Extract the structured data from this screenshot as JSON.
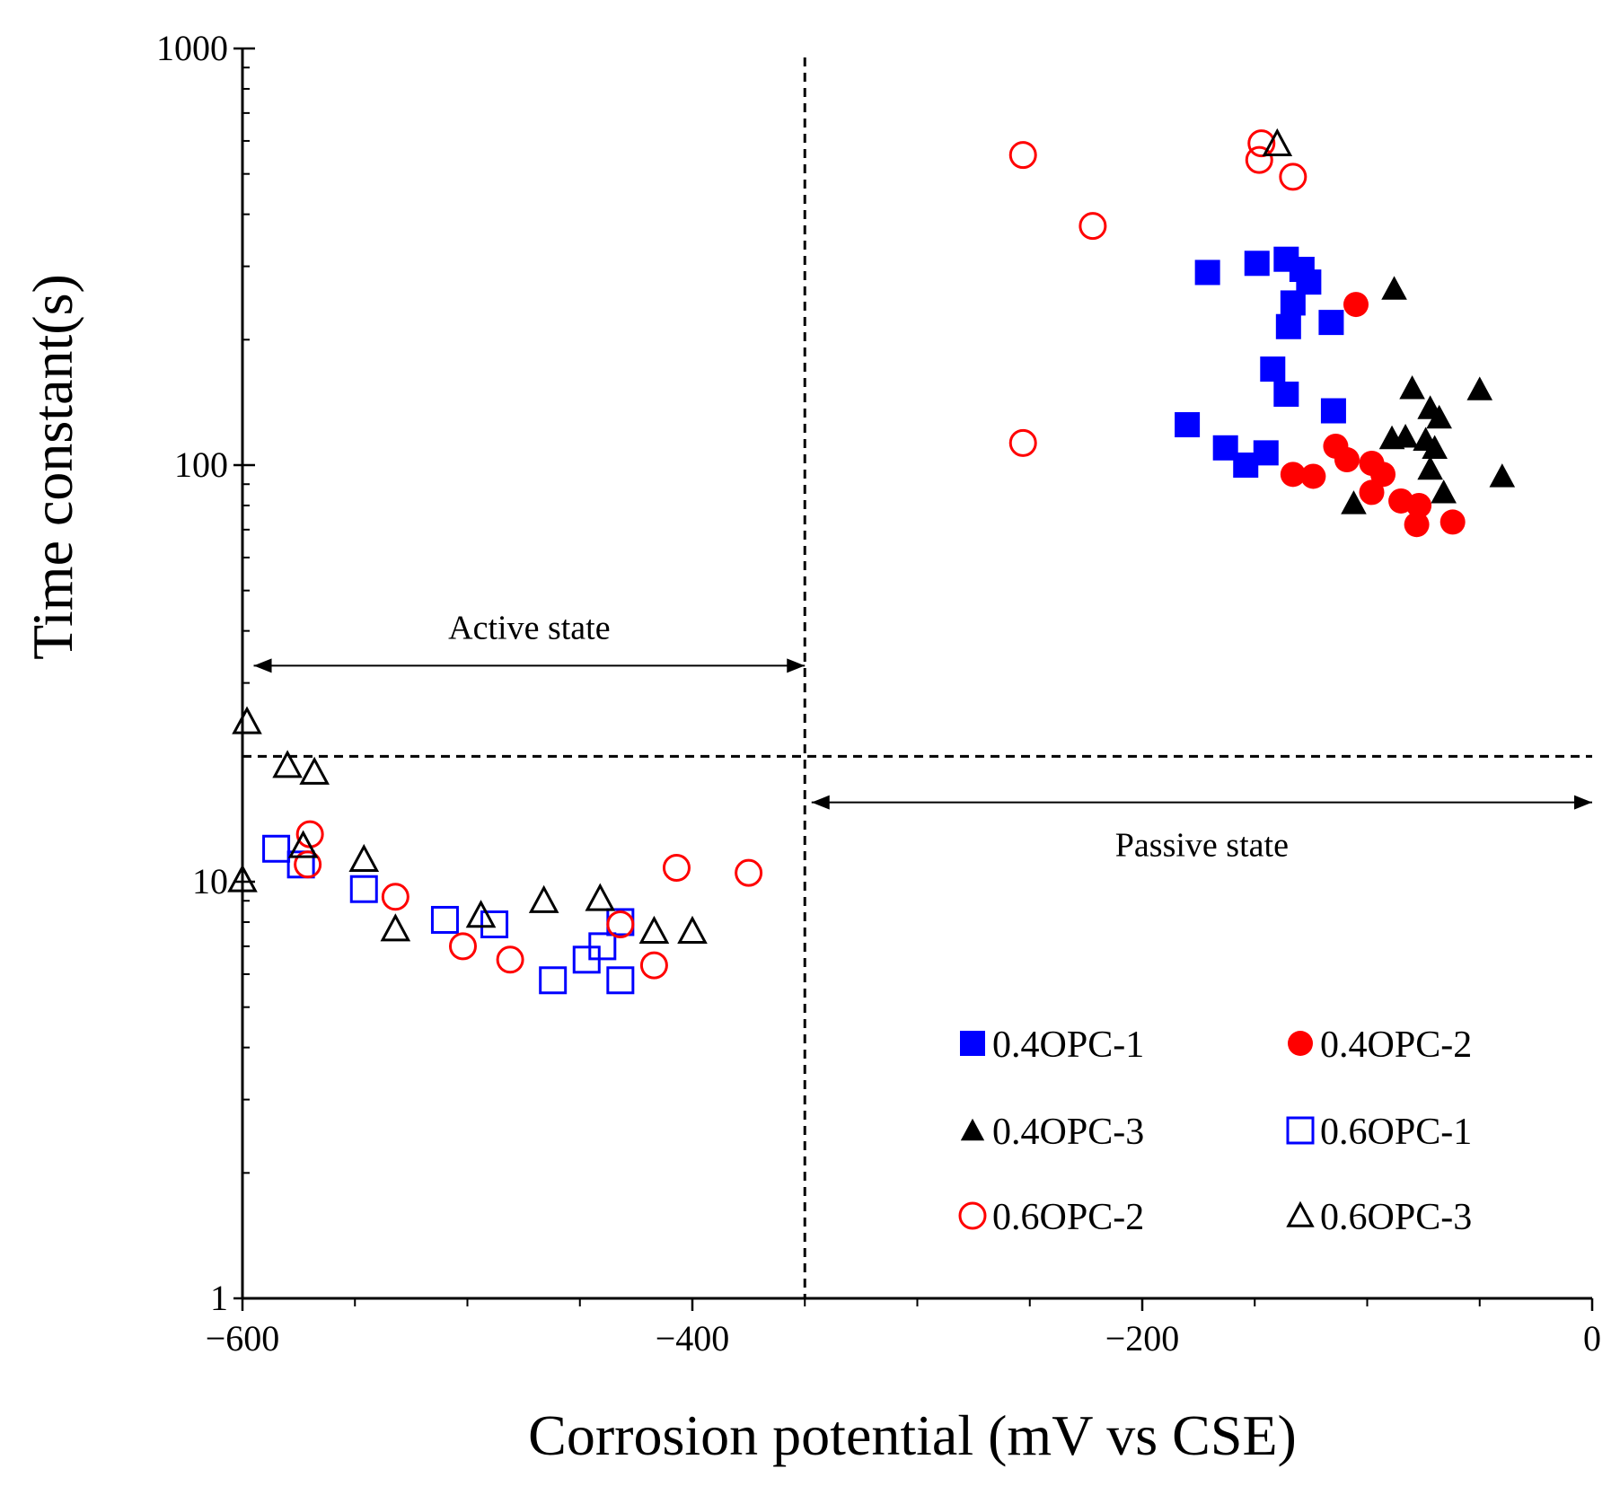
{
  "chart_data": {
    "type": "scatter",
    "title": "",
    "xlabel": "Corrosion potential (mV vs CSE)",
    "ylabel": "Time constant(s)",
    "xlim": [
      -600,
      0
    ],
    "ylim": [
      1,
      1000
    ],
    "yscale": "log",
    "xticks": [
      -600,
      -400,
      -200,
      0
    ],
    "xtick_labels": [
      "−600",
      "−400",
      "−200",
      "0"
    ],
    "yticks": [
      1,
      10,
      100,
      1000
    ],
    "ytick_labels": [
      "1",
      "10",
      "100",
      "1000"
    ],
    "threshold_lines": {
      "x": -350,
      "y": 20
    },
    "annotations": [
      {
        "text": "Active state",
        "arrow_from_x": -595,
        "arrow_to_x": -350,
        "arrow_y": 33
      },
      {
        "text": "Passive state",
        "arrow_from_x": -347,
        "arrow_to_x": 0,
        "arrow_y": 15.5
      }
    ],
    "legend_position": "lower-right",
    "series": [
      {
        "name": "0.4OPC-1",
        "marker": "square",
        "filled": true,
        "color": "#0000ff",
        "points": [
          [
            -171,
            290
          ],
          [
            -149,
            305
          ],
          [
            -136,
            312
          ],
          [
            -129,
            295
          ],
          [
            -126,
            275
          ],
          [
            -133,
            245
          ],
          [
            -135,
            215
          ],
          [
            -116,
            220
          ],
          [
            -142,
            170
          ],
          [
            -136,
            148
          ],
          [
            -115,
            135
          ],
          [
            -180,
            125
          ],
          [
            -163,
            110
          ],
          [
            -154,
            100
          ],
          [
            -145,
            107
          ]
        ]
      },
      {
        "name": "0.4OPC-2",
        "marker": "circle",
        "filled": true,
        "color": "#ff0000",
        "points": [
          [
            -105,
            243
          ],
          [
            -114,
            111
          ],
          [
            -109,
            103
          ],
          [
            -98,
            101
          ],
          [
            -93,
            95
          ],
          [
            -133,
            95
          ],
          [
            -124,
            94
          ],
          [
            -98,
            86
          ],
          [
            -85,
            82
          ],
          [
            -77,
            80
          ],
          [
            -78,
            72
          ],
          [
            -62,
            73
          ]
        ]
      },
      {
        "name": "0.4OPC-3",
        "marker": "triangle",
        "filled": true,
        "color": "#000000",
        "points": [
          [
            -88,
            265
          ],
          [
            -80,
            153
          ],
          [
            -72,
            137
          ],
          [
            -68,
            130
          ],
          [
            -50,
            152
          ],
          [
            -89,
            116
          ],
          [
            -83,
            117
          ],
          [
            -74,
            115
          ],
          [
            -70,
            110
          ],
          [
            -72,
            98
          ],
          [
            -40,
            94
          ],
          [
            -66,
            86
          ],
          [
            -106,
            81
          ]
        ]
      },
      {
        "name": "0.6OPC-1",
        "marker": "square",
        "filled": false,
        "color": "#0000ff",
        "points": [
          [
            -585,
            12
          ],
          [
            -574,
            11
          ],
          [
            -546,
            9.6
          ],
          [
            -510,
            8.1
          ],
          [
            -488,
            7.9
          ],
          [
            -462,
            5.8
          ],
          [
            -447,
            6.5
          ],
          [
            -440,
            7
          ],
          [
            -432,
            8
          ],
          [
            -432,
            5.8
          ]
        ]
      },
      {
        "name": "0.6OPC-2",
        "marker": "circle",
        "filled": false,
        "color": "#ff0000",
        "points": [
          [
            -253,
            555
          ],
          [
            -147,
            592
          ],
          [
            -148,
            540
          ],
          [
            -133,
            492
          ],
          [
            -222,
            375
          ],
          [
            -253,
            113
          ],
          [
            -570,
            13
          ],
          [
            -571,
            11
          ],
          [
            -532,
            9.2
          ],
          [
            -502,
            7
          ],
          [
            -481,
            6.5
          ],
          [
            -407,
            10.8
          ],
          [
            -375,
            10.5
          ],
          [
            -432,
            7.9
          ],
          [
            -417,
            6.3
          ]
        ]
      },
      {
        "name": "0.6OPC-3",
        "marker": "triangle",
        "filled": false,
        "color": "#000000",
        "points": [
          [
            -140,
            590
          ],
          [
            -598,
            24.2
          ],
          [
            -580,
            19
          ],
          [
            -568,
            18.3
          ],
          [
            -573,
            12.2
          ],
          [
            -546,
            11.3
          ],
          [
            -600,
            10.1
          ],
          [
            -532,
            7.7
          ],
          [
            -494,
            8.3
          ],
          [
            -466,
            9
          ],
          [
            -441,
            9.1
          ],
          [
            -417,
            7.6
          ],
          [
            -400,
            7.6
          ]
        ]
      }
    ]
  }
}
